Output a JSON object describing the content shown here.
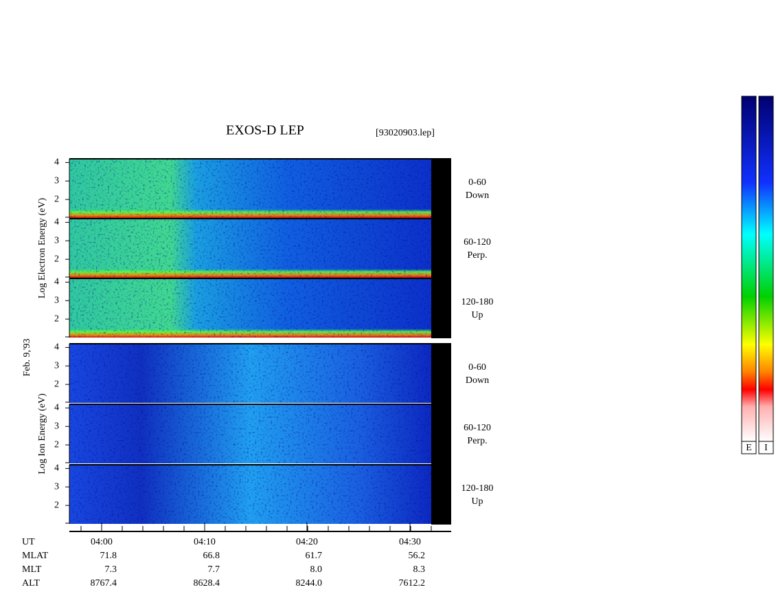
{
  "title": "EXOS-D LEP",
  "file": "[93020903.lep]",
  "date": "Feb. 9,'93",
  "ylim": [
    1,
    4.2
  ],
  "yticks": [
    2,
    3,
    4
  ],
  "groups": [
    {
      "label": "Log  Electron  Energy (eV)",
      "panels": [
        {
          "pitch": "0-60",
          "dir": "Down"
        },
        {
          "pitch": "60-120",
          "dir": "Perp."
        },
        {
          "pitch": "120-180",
          "dir": "Up"
        }
      ]
    },
    {
      "label": "Log   Ion   Energy (eV)",
      "panels": [
        {
          "pitch": "0-60",
          "dir": "Down"
        },
        {
          "pitch": "60-120",
          "dir": "Perp."
        },
        {
          "pitch": "120-180",
          "dir": "Up"
        }
      ]
    }
  ],
  "ephemeris": {
    "names": [
      "UT",
      "MLAT",
      "MLT",
      "ALT"
    ],
    "columns": [
      [
        "04:00",
        "71.8",
        "7.3",
        "8767.4"
      ],
      [
        "04:10",
        "66.8",
        "7.7",
        "8628.4"
      ],
      [
        "04:20",
        "61.7",
        "8.0",
        "8244.0"
      ],
      [
        "04:30",
        "56.2",
        "8.3",
        "7612.2"
      ]
    ]
  },
  "colorbars": [
    "E",
    "I"
  ]
}
